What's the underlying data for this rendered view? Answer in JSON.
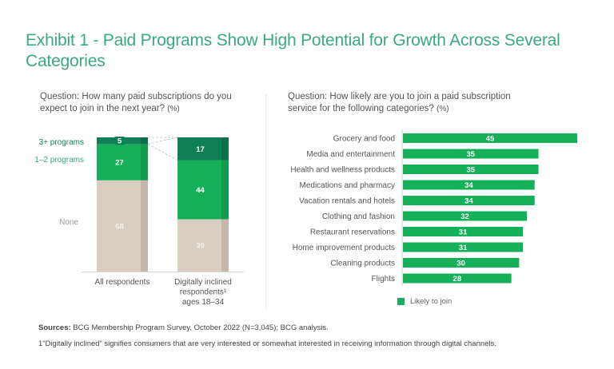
{
  "title": "Exhibit 1 - Paid Programs Show High Potential for Growth Across Several Categories",
  "colors": {
    "title": "#3aa886",
    "three_plus": "#0e7f56",
    "three_plus_shade": "#0b6f4b",
    "one_two": "#17b05a",
    "one_two_shade": "#139b4e",
    "none": "#dacdc2",
    "none_shade": "#c5b5aa",
    "bar": "#17b05a"
  },
  "sources_label": "Sources:",
  "sources_text": "BCG Membership Program Survey, October 2022 (N=3,045); BCG analysis.",
  "footnote": "1“Digitally inclined” signifies consumers that are very interested or somewhat interested in receiving information through digital channels.",
  "chart_data": [
    {
      "type": "bar",
      "stacked": true,
      "question": "Question: How many paid subscriptions do you expect to join in the next year?",
      "unit": "(%)",
      "categories": [
        "All respondents",
        "Digitally inclined respondents¹ ages 18–34"
      ],
      "category_lines": [
        [
          "All respondents"
        ],
        [
          "Digitally inclined",
          "respondents¹",
          "ages 18–34"
        ]
      ],
      "series": [
        {
          "name": "None",
          "values": [
            68,
            39
          ]
        },
        {
          "name": "1–2 programs",
          "values": [
            27,
            44
          ]
        },
        {
          "name": "3+ programs",
          "values": [
            5,
            17
          ]
        }
      ],
      "ylim": [
        0,
        100
      ]
    },
    {
      "type": "bar",
      "orientation": "horizontal",
      "question": "Question: How likely are you to join a paid subscription service for the following categories?",
      "unit": "(%)",
      "categories": [
        "Grocery and food",
        "Media and entertainment",
        "Health and wellness products",
        "Medications and pharmacy",
        "Vacation rentals and hotels",
        "Clothing and fashion",
        "Restaurant reservations",
        "Home improvement products",
        "Cleaning products",
        "Flights"
      ],
      "series": [
        {
          "name": "Likely to join",
          "values": [
            45,
            35,
            35,
            34,
            34,
            32,
            31,
            31,
            30,
            28
          ]
        }
      ],
      "xlim": [
        0,
        45
      ],
      "legend": "bottom"
    }
  ]
}
